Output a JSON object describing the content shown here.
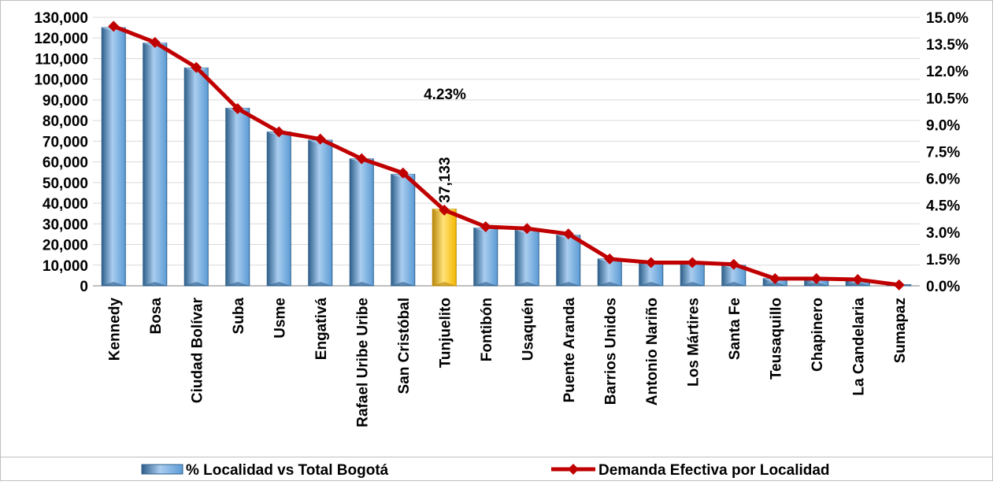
{
  "chart_data": {
    "type": "bar",
    "categories": [
      "Kennedy",
      "Bosa",
      "Ciudad Bolívar",
      "Suba",
      "Usme",
      "Engativá",
      "Rafael Uribe Uribe",
      "San Cristóbal",
      "Tunjuelito",
      "Fontibón",
      "Usaquén",
      "Puente Aranda",
      "Barrios Unidos",
      "Antonio Nariño",
      "Los Mártires",
      "Santa Fe",
      "Teusaquillo",
      "Chapinero",
      "La Candelaria",
      "Sumapaz"
    ],
    "series": [
      {
        "name": "% Localidad vs Total Bogotá",
        "type": "bar",
        "axis": "left",
        "values": [
          125000,
          117500,
          105500,
          86000,
          74500,
          70500,
          61500,
          54000,
          37133,
          28000,
          27000,
          24500,
          13000,
          11500,
          11500,
          10000,
          3500,
          3500,
          3000,
          500
        ]
      },
      {
        "name": "Demanda Efectiva por Localidad",
        "type": "line",
        "axis": "right",
        "values": [
          14.5,
          13.6,
          12.2,
          9.9,
          8.6,
          8.2,
          7.1,
          6.3,
          4.23,
          3.3,
          3.2,
          2.9,
          1.5,
          1.3,
          1.3,
          1.2,
          0.4,
          0.4,
          0.35,
          0.05
        ]
      }
    ],
    "highlight": {
      "category": "Tunjuelito",
      "bar_label": "37,133",
      "line_label": "4.23%"
    },
    "y_left": {
      "min": 0,
      "max": 130000,
      "ticks": [
        "0",
        "10,000",
        "20,000",
        "30,000",
        "40,000",
        "50,000",
        "60,000",
        "70,000",
        "80,000",
        "90,000",
        "100,000",
        "110,000",
        "120,000",
        "130,000"
      ]
    },
    "y_right": {
      "min": 0,
      "max": 15,
      "ticks": [
        "0.0%",
        "1.5%",
        "3.0%",
        "4.5%",
        "6.0%",
        "7.5%",
        "9.0%",
        "10.5%",
        "12.0%",
        "13.5%",
        "15.0%"
      ]
    },
    "grid": true,
    "legend_position": "bottom",
    "colors": {
      "bar": "#5B9BD5",
      "bar_dark": "#2E5F8A",
      "bar_light": "#A9CDEF",
      "highlight_bar": "#F5B800",
      "highlight_bar_light": "#FFE27A",
      "highlight_bar_dark": "#B8860B",
      "line": "#C00000",
      "grid": "#D9D9D9"
    }
  }
}
